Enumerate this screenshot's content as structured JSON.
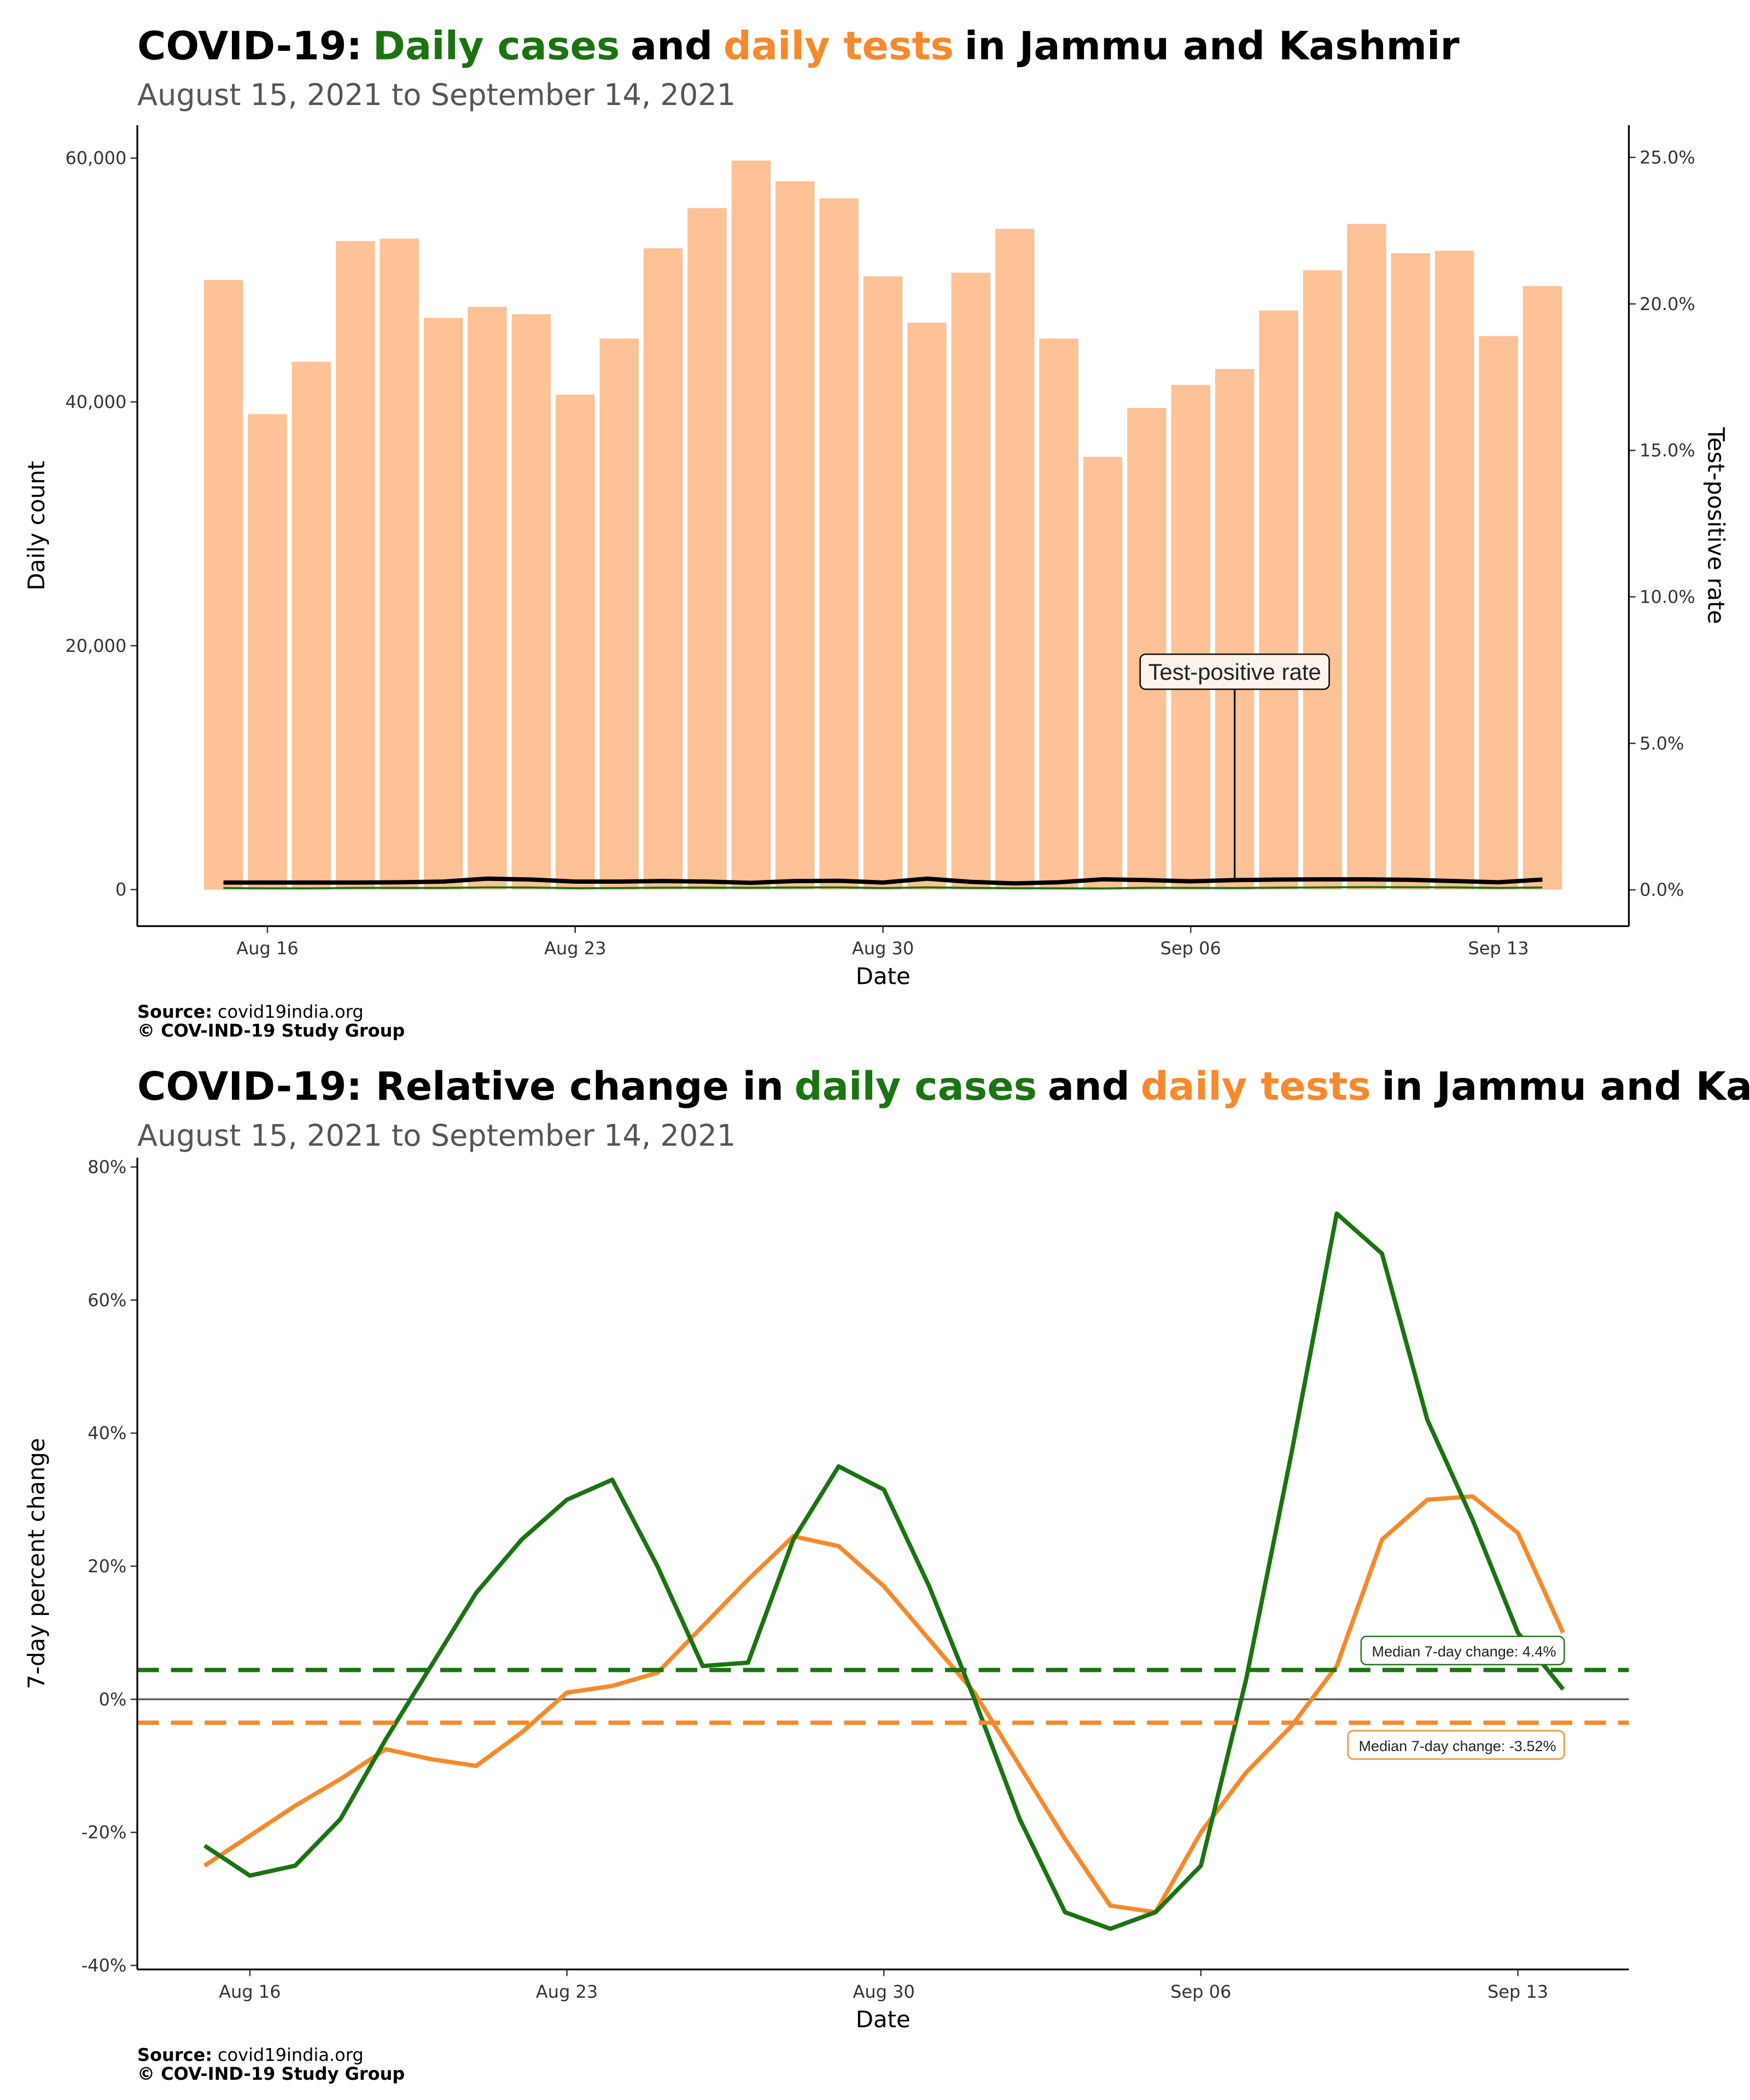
{
  "chart_data": [
    {
      "type": "bar",
      "title_parts": [
        {
          "text": "COVID-19:",
          "color": "#000000"
        },
        {
          "text": "Daily cases",
          "color": "#1a7410"
        },
        {
          "text": "and",
          "color": "#000000"
        },
        {
          "text": "daily tests",
          "color": "#f6892b"
        },
        {
          "text": "in Jammu and Kashmir",
          "color": "#000000"
        }
      ],
      "subtitle": "August 15, 2021 to September 14, 2021",
      "categories": [
        null,
        "Aug 16",
        null,
        null,
        null,
        null,
        null,
        null,
        "Aug 23",
        null,
        null,
        null,
        null,
        null,
        null,
        "Aug 30",
        null,
        null,
        null,
        null,
        null,
        null,
        "Sep 06",
        null,
        null,
        null,
        null,
        null,
        null,
        "Sep 13",
        null
      ],
      "series": [
        {
          "type": "bar",
          "color": "#fcc195",
          "values": [
            50000,
            39000,
            43300,
            53200,
            53400,
            46900,
            47800,
            47200,
            40600,
            45200,
            52600,
            55900,
            59800,
            58100,
            56700,
            50300,
            46500,
            50600,
            54200,
            45200,
            35500,
            39500,
            41400,
            42700,
            47500,
            50800,
            54600,
            52200,
            52400,
            45400,
            49500
          ]
        },
        {
          "type": "line",
          "color": "#1a7410",
          "values": [
            125,
            98,
            108,
            133,
            139,
            131,
            182,
            165,
            114,
            127,
            158,
            157,
            144,
            174,
            176,
            126,
            177,
            137,
            119,
            99,
            92,
            142,
            137,
            124,
            157,
            178,
            197,
            188,
            178,
            136,
            173
          ]
        },
        {
          "type": "line",
          "axis": "y2",
          "color": "#000000",
          "values": [
            0.25,
            0.25,
            0.25,
            0.25,
            0.26,
            0.28,
            0.38,
            0.35,
            0.28,
            0.28,
            0.3,
            0.28,
            0.24,
            0.3,
            0.31,
            0.25,
            0.38,
            0.27,
            0.22,
            0.26,
            0.36,
            0.33,
            0.29,
            0.33,
            0.35,
            0.36,
            0.36,
            0.34,
            0.3,
            0.26,
            0.35
          ]
        }
      ],
      "ylim": [
        -3000,
        62700
      ],
      "yticks": [
        0,
        {
          "value": 20000,
          "label": "20,000"
        },
        {
          "value": 40000,
          "label": "40,000"
        },
        {
          "value": 60000,
          "label": "60,000"
        }
      ],
      "y2lim": [
        -1.24,
        26.1
      ],
      "y2ticks": [
        {
          "value": 0,
          "label": "0.0%"
        },
        {
          "value": 5,
          "label": "5.0%"
        },
        {
          "value": 10,
          "label": "10.0%"
        },
        {
          "value": 15,
          "label": "15.0%"
        },
        {
          "value": 20,
          "label": "20.0%"
        },
        {
          "value": 25,
          "label": "25.0%"
        }
      ],
      "xlabel": "Date",
      "ylabel": "Daily count",
      "y2label": "Test-positive rate",
      "annotation": "Test-positive rate",
      "source_label": "Source:",
      "source": "covid19india.org",
      "credit": "© COV-IND-19 Study Group"
    },
    {
      "type": "line",
      "title_parts": [
        {
          "text": "COVID-19: Relative change in",
          "color": "#000000"
        },
        {
          "text": "daily cases",
          "color": "#1a7410"
        },
        {
          "text": "and",
          "color": "#000000"
        },
        {
          "text": "daily tests",
          "color": "#f6892b"
        },
        {
          "text": "in Jammu and Kashmir",
          "color": "#000000"
        }
      ],
      "subtitle": "August 15, 2021 to September 14, 2021",
      "categories": [
        null,
        "Aug 16",
        null,
        null,
        null,
        null,
        null,
        null,
        "Aug 23",
        null,
        null,
        null,
        null,
        null,
        null,
        "Aug 30",
        null,
        null,
        null,
        null,
        null,
        null,
        "Sep 06",
        null,
        null,
        null,
        null,
        null,
        null,
        "Sep 13",
        null
      ],
      "series": [
        {
          "type": "line",
          "color": "#f6892b",
          "values": [
            -25,
            -20.5,
            -16,
            -12,
            -7.5,
            -9,
            -10,
            -5,
            1,
            2,
            4,
            11,
            18,
            24.5,
            23,
            17,
            9,
            1,
            -10,
            -21,
            -31,
            -32,
            -20,
            -11,
            -4,
            5,
            24,
            30,
            30.5,
            25,
            10
          ]
        },
        {
          "type": "line",
          "color": "#1a7410",
          "values": [
            -22,
            -26.5,
            -25,
            -18,
            -6,
            5,
            16,
            24,
            30,
            33,
            20,
            5,
            5.5,
            24,
            35,
            31.5,
            17,
            0,
            -18,
            -32,
            -34.5,
            -32,
            -25,
            3,
            37,
            73,
            67,
            42,
            27,
            10,
            1.5
          ]
        }
      ],
      "ylim": [
        -40.6,
        81.4
      ],
      "yticks": [
        {
          "value": -40,
          "label": "-40%"
        },
        {
          "value": -20,
          "label": "-20%"
        },
        {
          "value": 0,
          "label": "0%"
        },
        {
          "value": 20,
          "label": "20%"
        },
        {
          "value": 40,
          "label": "40%"
        },
        {
          "value": 60,
          "label": "60%"
        },
        {
          "value": 80,
          "label": "80%"
        }
      ],
      "reference_line": 0,
      "medians": [
        {
          "value": 4.4,
          "color": "#1a7410",
          "label": "Median 7-day change: 4.4%"
        },
        {
          "value": -3.52,
          "color": "#f6892b",
          "label": "Median 7-day change: -3.52%"
        }
      ],
      "xlabel": "Date",
      "ylabel": "7-day percent change",
      "source_label": "Source:",
      "source": "covid19india.org",
      "credit": "© COV-IND-19 Study Group"
    }
  ]
}
